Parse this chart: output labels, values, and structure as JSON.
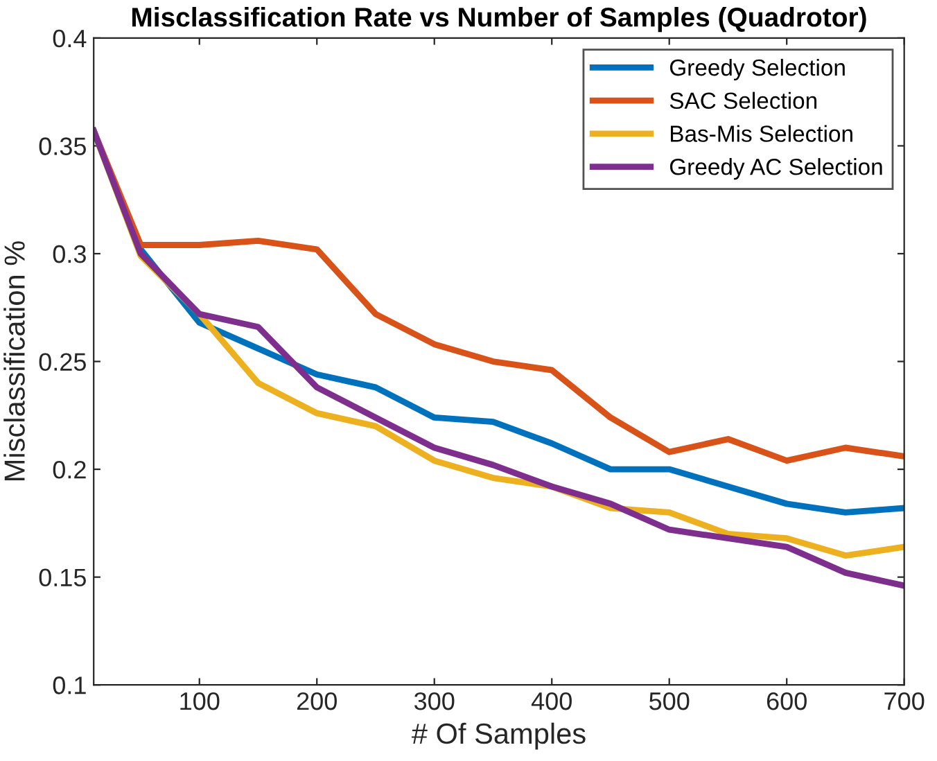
{
  "chart_data": {
    "type": "line",
    "title": "Misclassification Rate vs Number of Samples (Quadrotor)",
    "xlabel": "# Of Samples",
    "ylabel": "Misclassification %",
    "x": [
      10,
      50,
      100,
      150,
      200,
      250,
      300,
      350,
      400,
      450,
      500,
      550,
      600,
      650,
      700
    ],
    "series": [
      {
        "name": "Greedy Selection",
        "color": "#0072bd",
        "values": [
          0.357,
          0.302,
          0.268,
          0.256,
          0.244,
          0.238,
          0.224,
          0.222,
          0.212,
          0.2,
          0.2,
          0.192,
          0.184,
          0.18,
          0.182
        ]
      },
      {
        "name": "SAC Selection",
        "color": "#d95319",
        "values": [
          0.357,
          0.304,
          0.304,
          0.306,
          0.302,
          0.272,
          0.258,
          0.25,
          0.246,
          0.224,
          0.208,
          0.214,
          0.204,
          0.21,
          0.206
        ]
      },
      {
        "name": "Bas-Mis Selection",
        "color": "#edb120",
        "values": [
          0.357,
          0.299,
          0.272,
          0.24,
          0.226,
          0.22,
          0.204,
          0.196,
          0.192,
          0.182,
          0.18,
          0.17,
          0.168,
          0.16,
          0.164
        ]
      },
      {
        "name": "Greedy AC Selection",
        "color": "#7e2f8e",
        "values": [
          0.357,
          0.3,
          0.272,
          0.266,
          0.238,
          0.224,
          0.21,
          0.202,
          0.192,
          0.184,
          0.172,
          0.168,
          0.164,
          0.152,
          0.146
        ]
      }
    ],
    "xlim": [
      10,
      700
    ],
    "ylim": [
      0.1,
      0.4
    ],
    "xticks": [
      100,
      200,
      300,
      400,
      500,
      600,
      700
    ],
    "yticks": [
      0.1,
      0.15,
      0.2,
      0.25,
      0.3,
      0.35,
      0.4
    ],
    "grid": false,
    "legend": "top right",
    "marker": "none",
    "line_style": "solid"
  }
}
